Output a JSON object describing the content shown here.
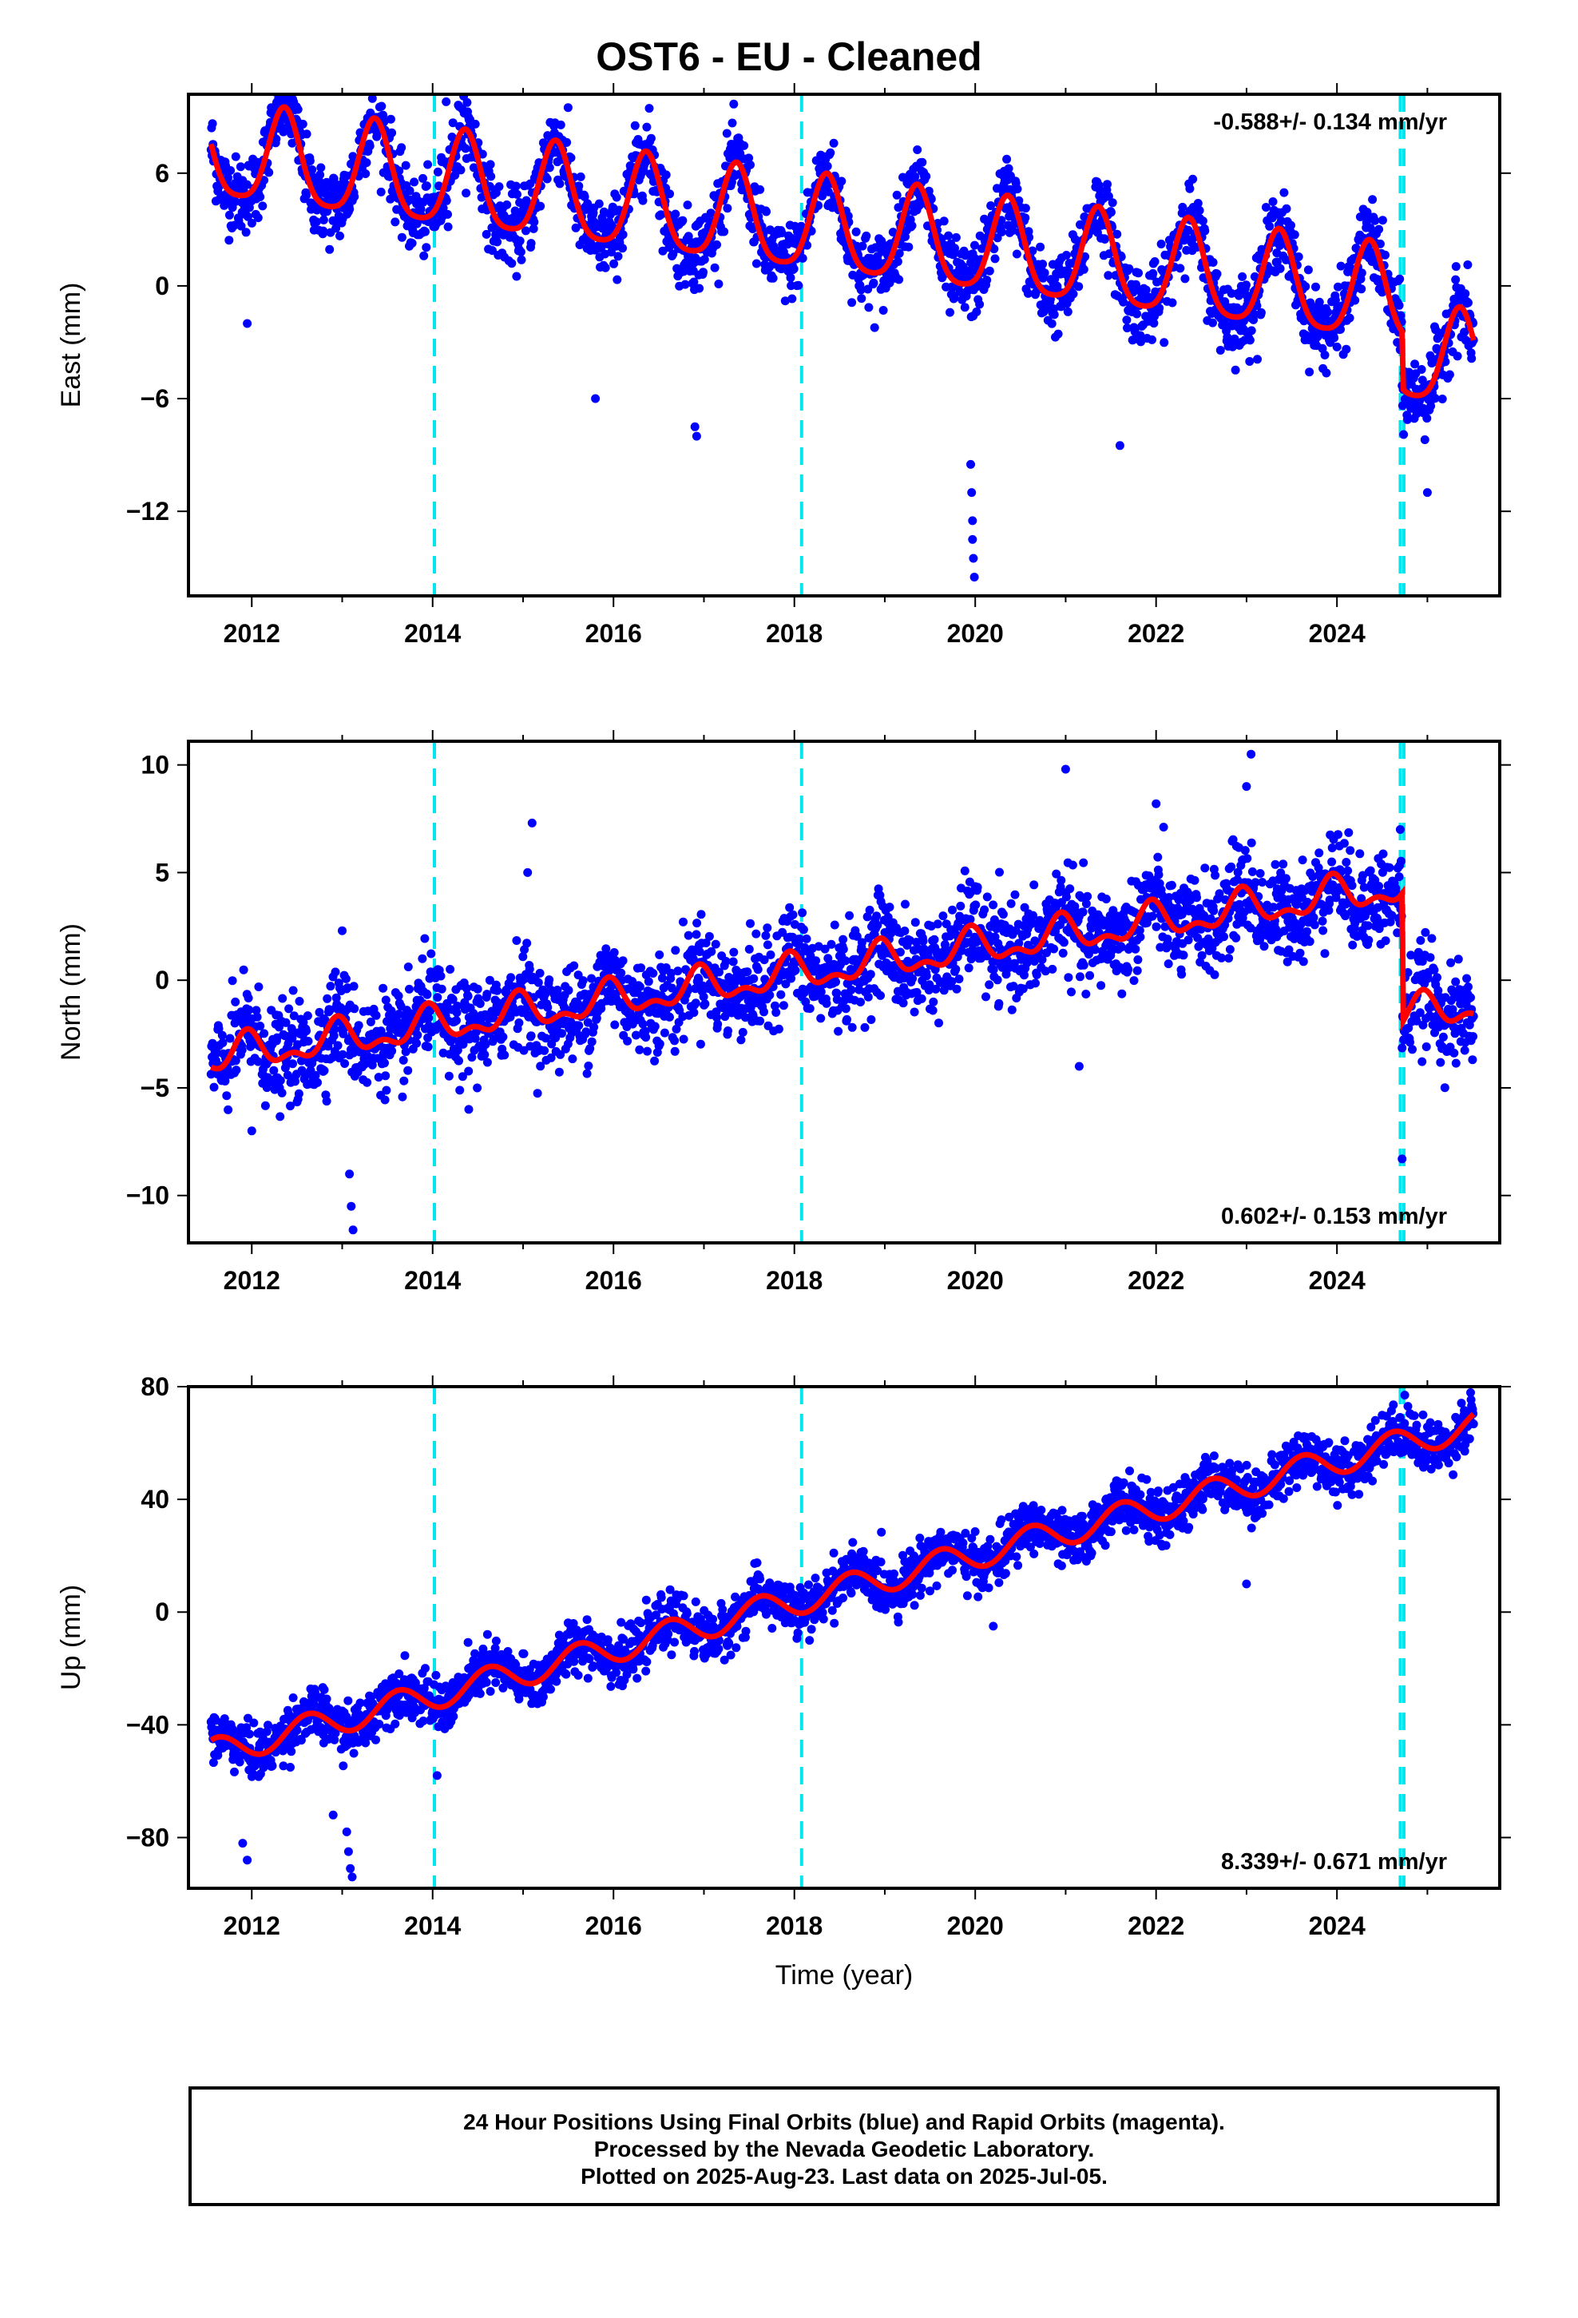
{
  "title": "OST6  - EU - Cleaned",
  "footer": {
    "line1": "24 Hour Positions Using Final Orbits (blue) and Rapid Orbits (magenta).",
    "line2": "Processed by the Nevada Geodetic Laboratory.",
    "line3": "Plotted on 2025-Aug-23. Last data on 2025-Jul-05."
  },
  "colors": {
    "points": "#0000ff",
    "fit": "#ff0000",
    "events": "#00e5ee",
    "frame": "#000000"
  },
  "chart_data": [
    {
      "type": "scatter",
      "ylabel": "East (mm)",
      "xlabel": "",
      "xlim": [
        2011.3,
        2025.8
      ],
      "ylim": [
        -16.5,
        10.2
      ],
      "xticks": [
        2012,
        2014,
        2016,
        2018,
        2020,
        2022,
        2024
      ],
      "yticks": [
        6,
        0,
        -6,
        -12
      ],
      "ytick_labels": [
        "6",
        "0",
        "−6",
        "−12"
      ],
      "rate_label": "-0.588+/- 0.134 mm/yr",
      "rate_position": "top-right",
      "event_lines": [
        2014.02,
        2018.08,
        2024.7,
        2024.74
      ],
      "data_start": 2011.55,
      "data_end": 2025.51,
      "fit": {
        "offset": 7.0,
        "slope": -0.588,
        "amp_annual": 2.5,
        "peak_phase": 0.36,
        "amp_semiannual": 0.5,
        "steps": [
          {
            "year": 2024.72,
            "size": -3.0
          }
        ]
      },
      "scatter_sd": 1.0,
      "outliers": [
        {
          "x": 2019.95,
          "y": -9.5
        },
        {
          "x": 2019.96,
          "y": -11.0
        },
        {
          "x": 2019.97,
          "y": -12.5
        },
        {
          "x": 2019.97,
          "y": -13.5
        },
        {
          "x": 2019.98,
          "y": -14.5
        },
        {
          "x": 2019.99,
          "y": -15.5
        },
        {
          "x": 2016.9,
          "y": -7.5
        },
        {
          "x": 2016.92,
          "y": -8.0
        },
        {
          "x": 2015.8,
          "y": -6.0
        },
        {
          "x": 2014.15,
          "y": 9.8
        },
        {
          "x": 2012.4,
          "y": 10.0
        },
        {
          "x": 2012.45,
          "y": 9.5
        },
        {
          "x": 2011.95,
          "y": -2.0
        },
        {
          "x": 2021.6,
          "y": -8.5
        },
        {
          "x": 2025.0,
          "y": -11.0
        }
      ]
    },
    {
      "type": "scatter",
      "ylabel": "North (mm)",
      "xlabel": "",
      "xlim": [
        2011.3,
        2025.8
      ],
      "ylim": [
        -12.2,
        11.1
      ],
      "xticks": [
        2012,
        2014,
        2016,
        2018,
        2020,
        2022,
        2024
      ],
      "yticks": [
        10,
        5,
        0,
        -5,
        -10
      ],
      "ytick_labels": [
        "10",
        "5",
        "0",
        "−5",
        "−10"
      ],
      "rate_label": "0.602+/- 0.153 mm/yr",
      "rate_position": "bottom-right",
      "event_lines": [
        2014.02,
        2018.08,
        2024.7,
        2024.74
      ],
      "data_start": 2011.55,
      "data_end": 2025.51,
      "fit": {
        "offset": -3.6,
        "slope": 0.602,
        "amp_annual": 0.7,
        "peak_phase": 0.95,
        "amp_semiannual": 0.4,
        "steps": [
          {
            "year": 2024.72,
            "size": -6.0
          }
        ]
      },
      "scatter_sd": 1.1,
      "outliers": [
        {
          "x": 2013.08,
          "y": -9.0
        },
        {
          "x": 2013.1,
          "y": -10.5
        },
        {
          "x": 2013.12,
          "y": -11.6
        },
        {
          "x": 2015.1,
          "y": 7.3
        },
        {
          "x": 2015.05,
          "y": 5.0
        },
        {
          "x": 2021.0,
          "y": 9.8
        },
        {
          "x": 2022.0,
          "y": 8.2
        },
        {
          "x": 2023.05,
          "y": 10.5
        },
        {
          "x": 2023.0,
          "y": 9.0
        },
        {
          "x": 2024.72,
          "y": -8.3
        },
        {
          "x": 2024.7,
          "y": 7.0
        },
        {
          "x": 2012.0,
          "y": -7.0
        },
        {
          "x": 2013.0,
          "y": 2.3
        },
        {
          "x": 2014.4,
          "y": -6.0
        },
        {
          "x": 2021.15,
          "y": -4.0
        }
      ]
    },
    {
      "type": "scatter",
      "ylabel": "Up (mm)",
      "xlabel": "Time (year)",
      "xlim": [
        2011.3,
        2025.8
      ],
      "ylim": [
        -98,
        80
      ],
      "xticks": [
        2012,
        2014,
        2016,
        2018,
        2020,
        2022,
        2024
      ],
      "yticks": [
        80,
        40,
        0,
        -40,
        -80
      ],
      "ytick_labels": [
        "80",
        "40",
        "0",
        "−40",
        "−80"
      ],
      "rate_label": "8.339+/- 0.671 mm/yr",
      "rate_position": "bottom-right",
      "event_lines": [
        2014.02,
        2018.08,
        2024.7,
        2024.74
      ],
      "data_start": 2011.55,
      "data_end": 2025.51,
      "fit": {
        "offset": -50,
        "slope": 8.339,
        "amp_annual": 5.0,
        "peak_phase": 0.62,
        "amp_semiannual": 0.0,
        "steps": []
      },
      "scatter_sd": 4.5,
      "outliers": [
        {
          "x": 2013.05,
          "y": -78
        },
        {
          "x": 2013.07,
          "y": -85
        },
        {
          "x": 2013.09,
          "y": -91
        },
        {
          "x": 2013.11,
          "y": -94
        },
        {
          "x": 2011.9,
          "y": -82
        },
        {
          "x": 2011.95,
          "y": -88
        },
        {
          "x": 2012.9,
          "y": -72
        },
        {
          "x": 2014.05,
          "y": -58
        },
        {
          "x": 2023.0,
          "y": 10
        },
        {
          "x": 2024.75,
          "y": 77
        },
        {
          "x": 2025.5,
          "y": 72
        },
        {
          "x": 2017.6,
          "y": 12
        },
        {
          "x": 2020.2,
          "y": -5
        }
      ]
    }
  ]
}
